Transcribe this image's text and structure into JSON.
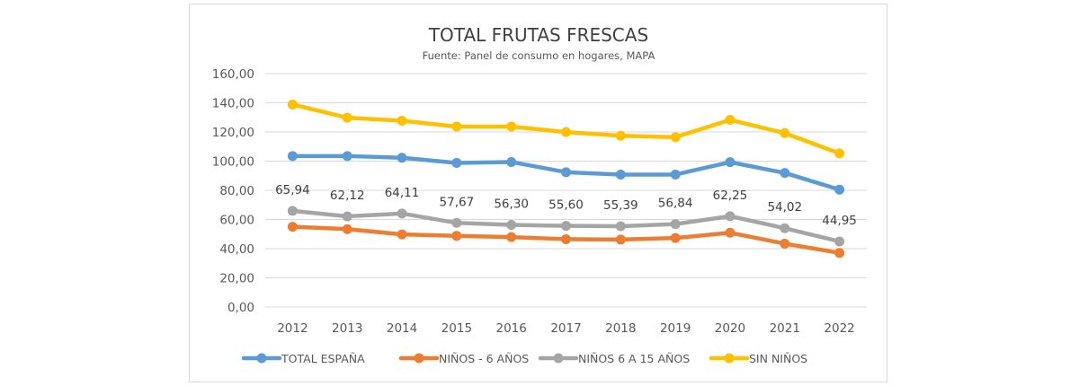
{
  "chart_data": {
    "type": "line",
    "title": "TOTAL FRUTAS FRESCAS",
    "subtitle": "Fuente: Panel de consumo en hogares, MAPA",
    "xlabel": "",
    "ylabel": "",
    "ylim": [
      0,
      160
    ],
    "y_ticks": [
      0,
      20,
      40,
      60,
      80,
      100,
      120,
      140,
      160
    ],
    "y_tick_labels": [
      "0,00",
      "20,00",
      "40,00",
      "60,00",
      "80,00",
      "100,00",
      "120,00",
      "140,00",
      "160,00"
    ],
    "grid": true,
    "legend_position": "bottom",
    "categories": [
      "2012",
      "2013",
      "2014",
      "2015",
      "2016",
      "2017",
      "2018",
      "2019",
      "2020",
      "2021",
      "2022"
    ],
    "series": [
      {
        "name": "TOTAL ESPAÑA",
        "color": "#5b9bd5",
        "values": [
          103.5,
          103.5,
          102.3,
          98.8,
          99.4,
          92.4,
          90.8,
          90.8,
          99.3,
          91.9,
          80.5
        ]
      },
      {
        "name": "NIÑOS - 6 AÑOS",
        "color": "#ed7d31",
        "values": [
          55.0,
          53.4,
          49.8,
          48.8,
          47.9,
          46.5,
          46.2,
          47.3,
          50.9,
          43.4,
          37.1
        ]
      },
      {
        "name": "NIÑOS 6 A 15 AÑOS",
        "color": "#a5a5a5",
        "values": [
          65.94,
          62.12,
          64.11,
          57.67,
          56.3,
          55.6,
          55.39,
          56.84,
          62.25,
          54.02,
          44.95
        ],
        "data_labels": [
          "65,94",
          "62,12",
          "64,11",
          "57,67",
          "56,30",
          "55,60",
          "55,39",
          "56,84",
          "62,25",
          "54,02",
          "44,95"
        ]
      },
      {
        "name": "SIN NIÑOS",
        "color": "#ffc000",
        "values": [
          138.8,
          129.8,
          127.7,
          123.7,
          123.7,
          119.9,
          117.4,
          116.4,
          128.3,
          119.2,
          105.3
        ]
      }
    ]
  }
}
